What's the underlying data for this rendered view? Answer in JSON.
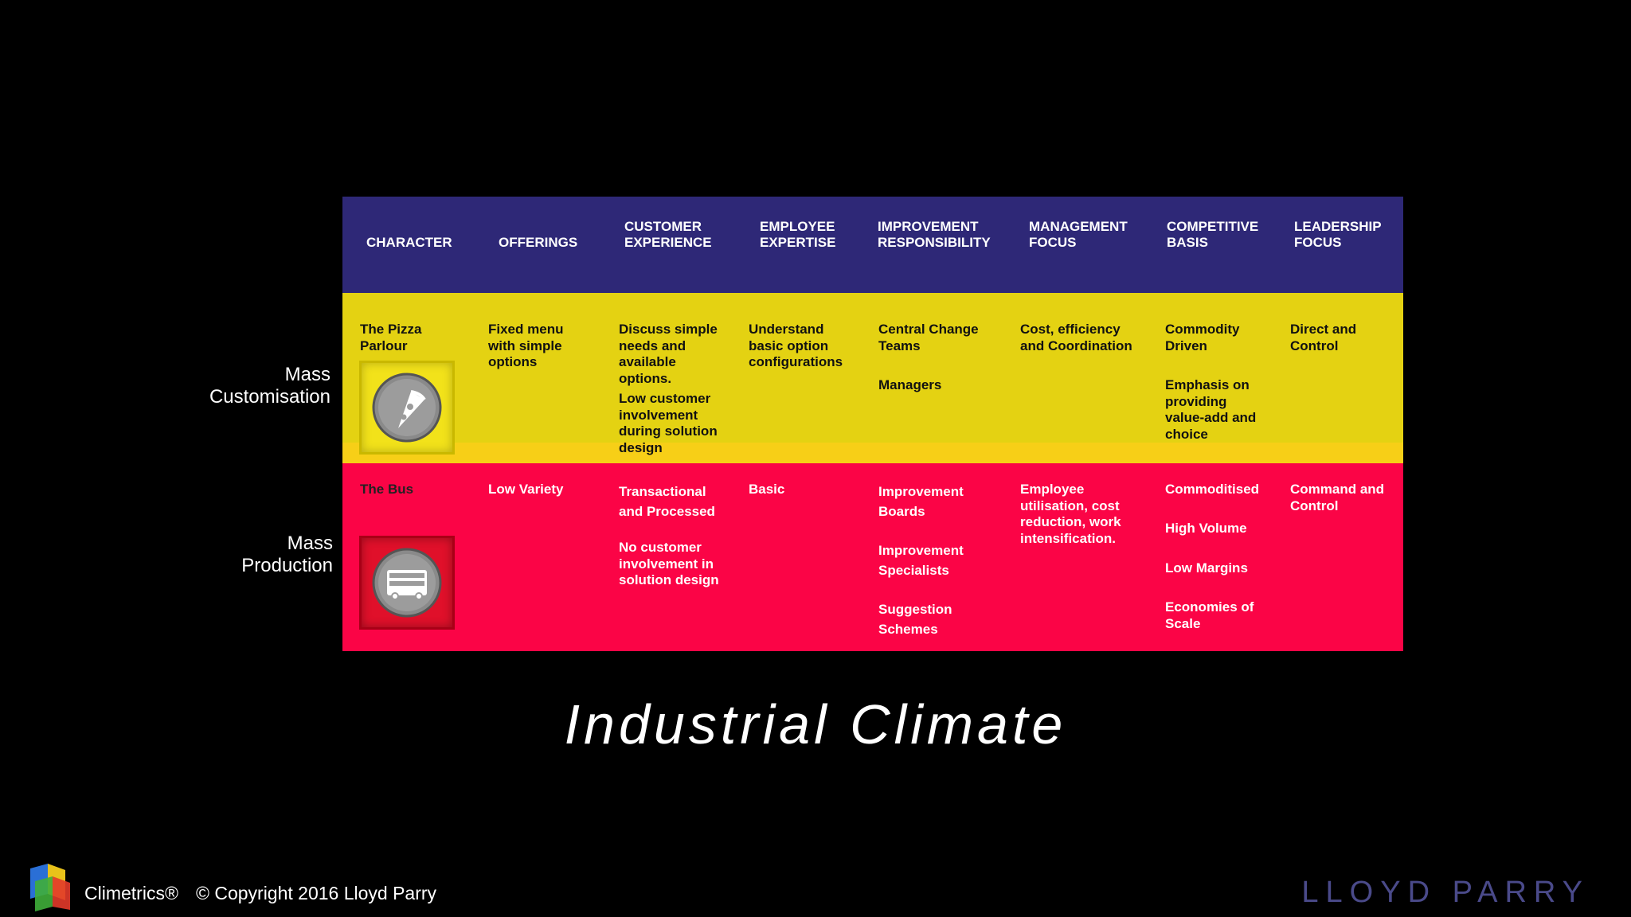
{
  "headers": [
    "CHARACTER",
    "OFFERINGS",
    "CUSTOMER\nEXPERIENCE",
    "EMPLOYEE\nEXPERTISE",
    "IMPROVEMENT\nRESPONSIBILITY",
    "MANAGEMENT\nFOCUS",
    "COMPETITIVE\nBASIS",
    "LEADERSHIP\nFOCUS"
  ],
  "rows": {
    "customisation": {
      "label": "Mass\nCustomisation",
      "character": "The Pizza\nParlour",
      "offerings": "Fixed menu\nwith simple\noptions",
      "customer_1": "Discuss simple\nneeds and\navailable\noptions.",
      "customer_2": "Low customer\ninvolvement\nduring solution\ndesign",
      "employee": "Understand\nbasic option\nconfigurations",
      "improvement_1": "Central Change\nTeams",
      "improvement_2": "Managers",
      "management": "Cost, efficiency\nand Coordination",
      "competitive_1": "Commodity\nDriven",
      "competitive_2": "Emphasis on\nproviding\nvalue-add and\nchoice",
      "leadership": "Direct and\nControl",
      "icon": "pizza-icon"
    },
    "production": {
      "label": "Mass\nProduction",
      "character": "The Bus",
      "offerings": "Low Variety",
      "customer_1": "Transactional\nand Processed",
      "customer_2": "No customer\ninvolvement in\nsolution design",
      "employee": "Basic",
      "improvement_1": "Improvement\nBoards",
      "improvement_2": "Improvement\nSpecialists",
      "improvement_3": "Suggestion\nSchemes",
      "management": "Employee\nutilisation, cost\nreduction, work\nintensification.",
      "competitive_1": "Commoditised",
      "competitive_2": "High Volume",
      "competitive_3": "Low Margins",
      "competitive_4": "Economies of\nScale",
      "leadership": "Command  and\nControl",
      "icon": "bus-icon"
    }
  },
  "title": "Industrial  Climate",
  "footer": {
    "brand": "Climetrics®",
    "copyright": "© Copyright 2016 Lloyd Parry",
    "logo": "LLOYD PARRY"
  },
  "colors": {
    "header": "#2e2877",
    "customisation": "#e4d212",
    "production": "#fb0446"
  }
}
